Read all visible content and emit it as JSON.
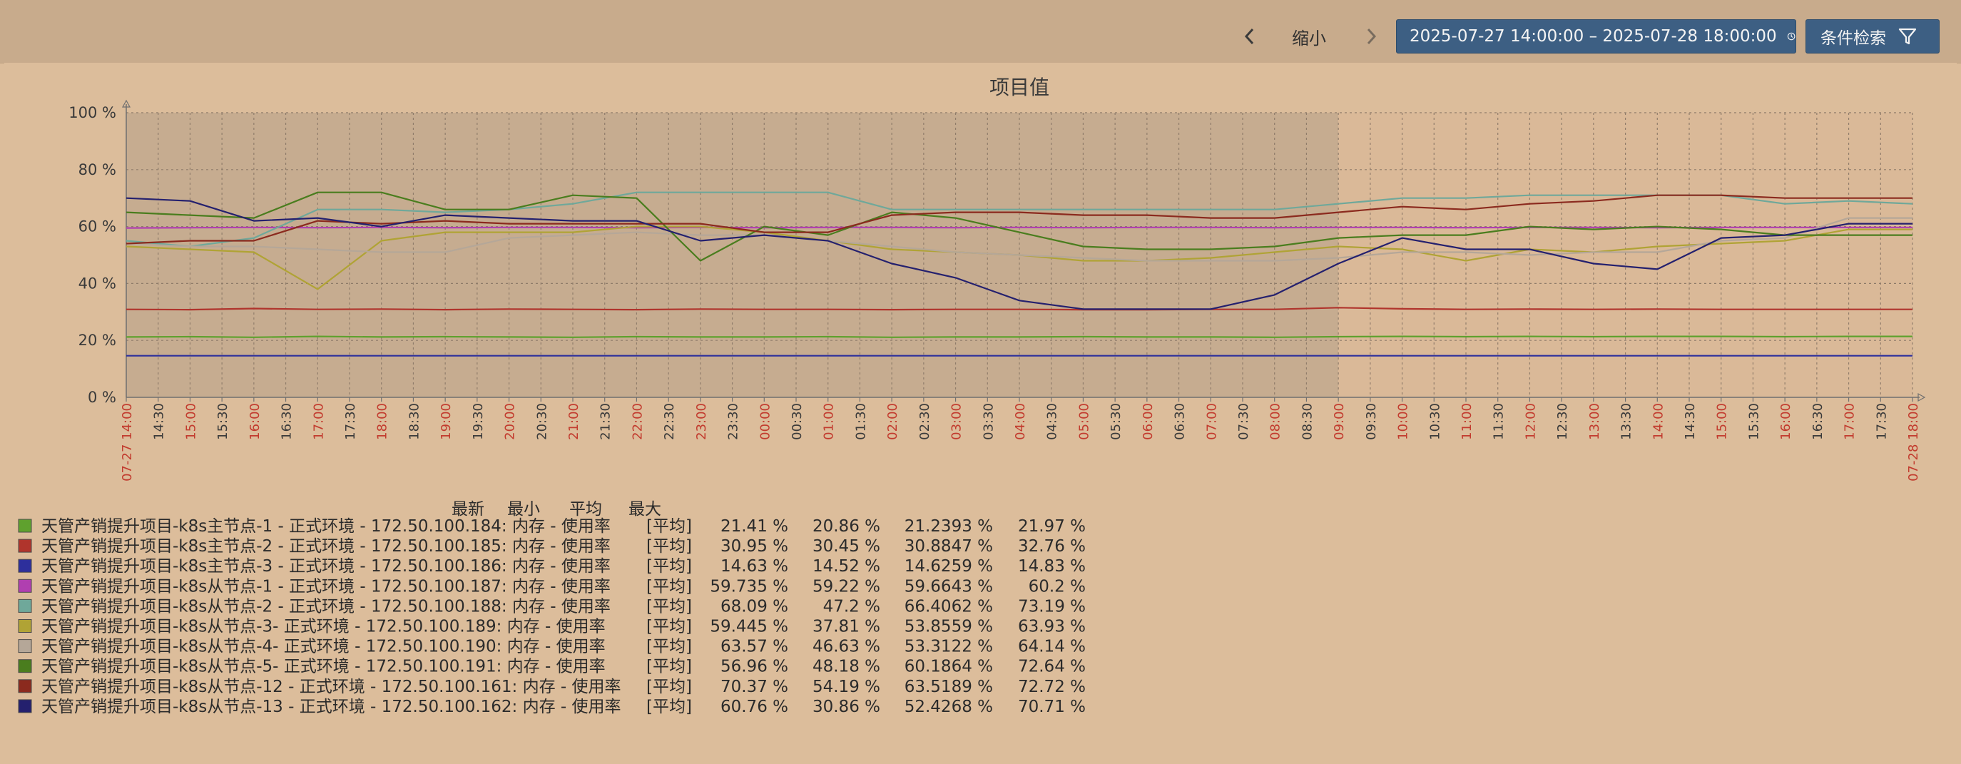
{
  "toolbar": {
    "zoom_out_label": "缩小",
    "time_range": "2025-07-27 14:00:00 – 2025-07-28 18:00:00",
    "filter_label": "条件检索",
    "prev_icon": "chevron-left-icon",
    "next_icon": "chevron-right-icon",
    "clock_icon": "clock-icon",
    "filter_icon": "filter-icon"
  },
  "chart_data": {
    "type": "line",
    "title": "项目值",
    "x_start": "2025-07-27 14:00",
    "x_end": "2025-07-28 18:00",
    "shaded_until": "09:00",
    "ylim": [
      0,
      100
    ],
    "y_ticks": [
      "0 %",
      "20 %",
      "40 %",
      "60 %",
      "80 %",
      "100 %"
    ],
    "x_tick_labels": [
      "07-27 14:00",
      "14:30",
      "15:00",
      "15:30",
      "16:00",
      "16:30",
      "17:00",
      "17:30",
      "18:00",
      "18:30",
      "19:00",
      "19:30",
      "20:00",
      "20:30",
      "21:00",
      "21:30",
      "22:00",
      "22:30",
      "23:00",
      "23:30",
      "00:00",
      "00:30",
      "01:00",
      "01:30",
      "02:00",
      "02:30",
      "03:00",
      "03:30",
      "04:00",
      "04:30",
      "05:00",
      "05:30",
      "06:00",
      "06:30",
      "07:00",
      "07:30",
      "08:00",
      "08:30",
      "09:00",
      "09:30",
      "10:00",
      "10:30",
      "11:00",
      "11:30",
      "12:00",
      "12:30",
      "13:00",
      "13:30",
      "14:00",
      "14:30",
      "15:00",
      "15:30",
      "16:00",
      "16:30",
      "17:00",
      "17:30",
      "07-28 18:00"
    ],
    "x": [
      "14:00",
      "15:00",
      "16:00",
      "17:00",
      "18:00",
      "19:00",
      "20:00",
      "21:00",
      "22:00",
      "23:00",
      "00:00",
      "01:00",
      "02:00",
      "03:00",
      "04:00",
      "05:00",
      "06:00",
      "07:00",
      "08:00",
      "09:00",
      "10:00",
      "11:00",
      "12:00",
      "13:00",
      "14:00",
      "15:00",
      "16:00",
      "17:00",
      "18:00"
    ],
    "stats_header": [
      "最新",
      "最小",
      "平均",
      "最大"
    ],
    "series": [
      {
        "name": "天管产销提升项目-k8s主节点-1 - 正式环境 - 172.50.100.184: 内存 - 使用率",
        "color": "#5fa12e",
        "func": "[平均]",
        "latest": "21.41 %",
        "min": "20.86 %",
        "avg": "21.2393 %",
        "max": "21.97 %",
        "values": [
          21.2,
          21.3,
          21.1,
          21.4,
          21.2,
          21.3,
          21.2,
          21.1,
          21.3,
          21.2,
          21.2,
          21.3,
          21.1,
          21.2,
          21.2,
          21.3,
          21.2,
          21.2,
          21.1,
          21.3,
          21.4,
          21.3,
          21.4,
          21.3,
          21.4,
          21.4,
          21.3,
          21.4,
          21.4
        ]
      },
      {
        "name": "天管产销提升项目-k8s主节点-2 - 正式环境 - 172.50.100.185: 内存 - 使用率",
        "color": "#b0342c",
        "func": "[平均]",
        "latest": "30.95 %",
        "min": "30.45 %",
        "avg": "30.8847 %",
        "max": "32.76 %",
        "values": [
          30.9,
          30.8,
          31.2,
          30.9,
          31.0,
          30.8,
          31.0,
          30.9,
          30.8,
          31.0,
          30.9,
          30.9,
          30.8,
          30.9,
          30.9,
          30.8,
          30.8,
          30.9,
          30.9,
          31.5,
          31.1,
          30.9,
          31.0,
          30.9,
          31.0,
          30.9,
          30.9,
          30.9,
          30.9
        ]
      },
      {
        "name": "天管产销提升项目-k8s主节点-3 - 正式环境 - 172.50.100.186: 内存 - 使用率",
        "color": "#2d2f9c",
        "func": "[平均]",
        "latest": "14.63 %",
        "min": "14.52 %",
        "avg": "14.6259 %",
        "max": "14.83 %",
        "values": [
          14.6,
          14.6,
          14.6,
          14.6,
          14.6,
          14.6,
          14.6,
          14.6,
          14.6,
          14.6,
          14.6,
          14.6,
          14.6,
          14.6,
          14.6,
          14.6,
          14.6,
          14.6,
          14.6,
          14.6,
          14.6,
          14.6,
          14.6,
          14.6,
          14.6,
          14.6,
          14.6,
          14.6,
          14.6
        ]
      },
      {
        "name": "天管产销提升项目-k8s从节点-1 - 正式环境 - 172.50.100.187: 内存 - 使用率",
        "color": "#b03fb0",
        "func": "[平均]",
        "latest": "59.735 %",
        "min": "59.22 %",
        "avg": "59.6643 %",
        "max": "60.2 %",
        "values": [
          59.5,
          59.6,
          59.7,
          59.6,
          59.7,
          59.6,
          59.7,
          59.7,
          59.6,
          59.7,
          59.6,
          59.7,
          59.7,
          59.6,
          59.7,
          59.6,
          59.7,
          59.7,
          59.6,
          59.7,
          59.7,
          59.6,
          59.7,
          59.7,
          59.6,
          59.7,
          59.7,
          59.7,
          59.7
        ]
      },
      {
        "name": "天管产销提升项目-k8s从节点-2 - 正式环境 - 172.50.100.188: 内存 - 使用率",
        "color": "#6fa89a",
        "func": "[平均]",
        "latest": "68.09 %",
        "min": "47.2 %",
        "avg": "66.4062 %",
        "max": "73.19 %",
        "values": [
          55,
          53,
          56,
          66,
          66,
          65,
          66,
          68,
          72,
          72,
          72,
          72,
          66,
          66,
          66,
          66,
          66,
          66,
          66,
          68,
          70,
          70,
          71,
          71,
          71,
          71,
          68,
          69,
          68
        ]
      },
      {
        "name": "天管产销提升项目-k8s从节点-3- 正式环境 - 172.50.100.189: 内存 - 使用率",
        "color": "#b0a335",
        "func": "[平均]",
        "latest": "59.445 %",
        "min": "37.81 %",
        "avg": "53.8559 %",
        "max": "63.93 %",
        "values": [
          53,
          52,
          51,
          38,
          55,
          58,
          58,
          58,
          60,
          60,
          58,
          55,
          52,
          51,
          50,
          48,
          48,
          49,
          51,
          53,
          52,
          48,
          52,
          51,
          53,
          54,
          55,
          59,
          59
        ]
      },
      {
        "name": "天管产销提升项目-k8s从节点-4- 正式环境 - 172.50.100.190: 内存 - 使用率",
        "color": "#b5a798",
        "func": "[平均]",
        "latest": "63.57 %",
        "min": "46.63 %",
        "avg": "53.3122 %",
        "max": "64.14 %",
        "values": [
          54,
          53,
          53,
          52,
          51,
          51,
          56,
          57,
          58,
          57,
          57,
          55,
          53,
          51,
          50,
          49,
          48,
          48,
          48,
          49,
          51,
          51,
          50,
          51,
          51,
          55,
          56,
          63,
          63
        ]
      },
      {
        "name": "天管产销提升项目-k8s从节点-5- 正式环境 - 172.50.100.191: 内存 - 使用率",
        "color": "#4a7d1e",
        "func": "[平均]",
        "latest": "56.96 %",
        "min": "48.18 %",
        "avg": "60.1864 %",
        "max": "72.64 %",
        "values": [
          65,
          64,
          63,
          72,
          72,
          66,
          66,
          71,
          70,
          48,
          60,
          57,
          65,
          63,
          58,
          53,
          52,
          52,
          53,
          56,
          57,
          57,
          60,
          59,
          60,
          59,
          57,
          57,
          57
        ]
      },
      {
        "name": "天管产销提升项目-k8s从节点-12 - 正式环境 - 172.50.100.161: 内存 - 使用率",
        "color": "#8b2a1e",
        "func": "[平均]",
        "latest": "70.37 %",
        "min": "54.19 %",
        "avg": "63.5189 %",
        "max": "72.72 %",
        "values": [
          54,
          55,
          55,
          62,
          61,
          62,
          61,
          61,
          61,
          61,
          58,
          58,
          64,
          65,
          65,
          64,
          64,
          63,
          63,
          65,
          67,
          66,
          68,
          69,
          71,
          71,
          70,
          70,
          70
        ]
      },
      {
        "name": "天管产销提升项目-k8s从节点-13 - 正式环境 - 172.50.100.162: 内存 - 使用率",
        "color": "#24206e",
        "func": "[平均]",
        "latest": "60.76 %",
        "min": "30.86 %",
        "avg": "52.4268 %",
        "max": "70.71 %",
        "values": [
          70,
          69,
          62,
          63,
          60,
          64,
          63,
          62,
          62,
          55,
          57,
          55,
          47,
          42,
          34,
          31,
          31,
          31,
          36,
          47,
          56,
          52,
          52,
          47,
          45,
          56,
          57,
          61,
          61
        ]
      }
    ]
  }
}
